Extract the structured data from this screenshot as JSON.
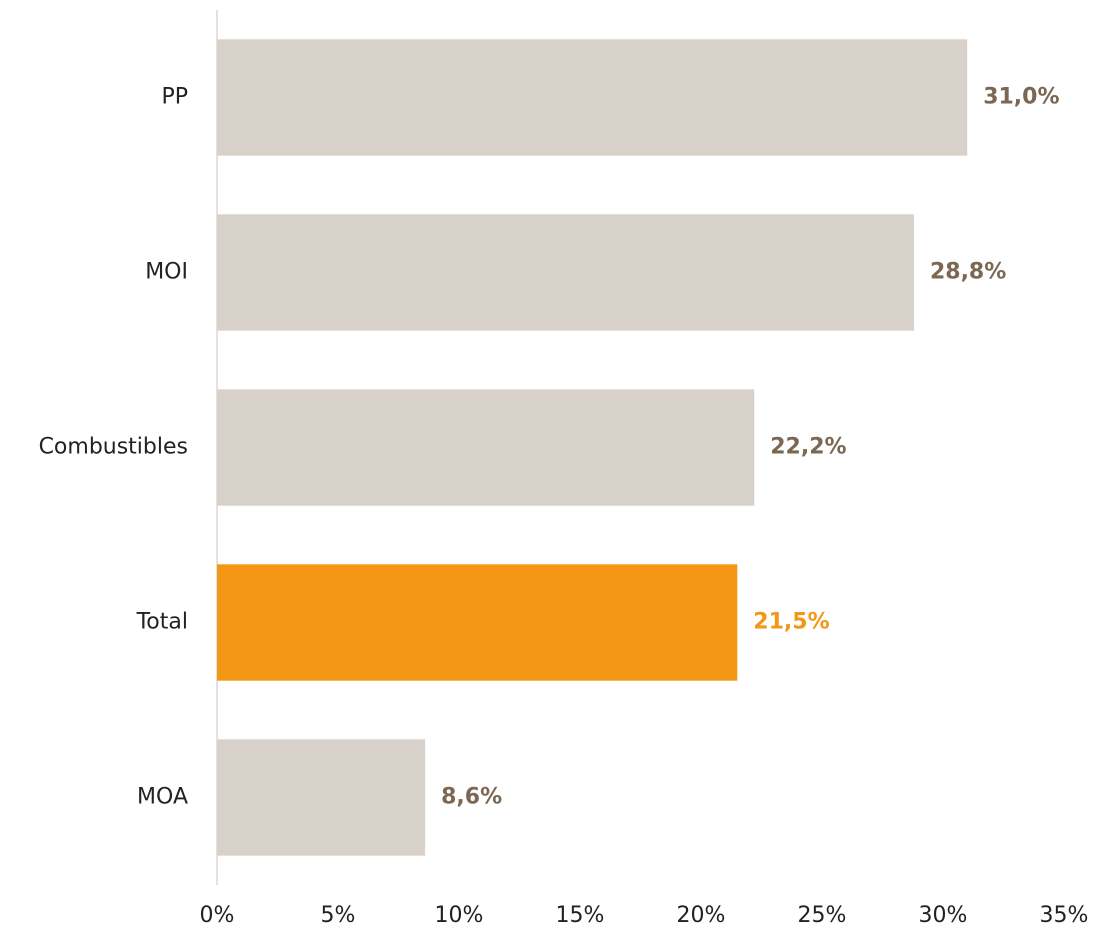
{
  "chart_data": {
    "type": "bar",
    "orientation": "horizontal",
    "categories": [
      "PP",
      "MOI",
      "Combustibles",
      "Total",
      "MOA"
    ],
    "values": [
      31.0,
      28.8,
      22.2,
      21.5,
      8.6
    ],
    "value_labels": [
      "31,0%",
      "28,8%",
      "22,2%",
      "21,5%",
      "8,6%"
    ],
    "colors": [
      "#d8d1ca",
      "#d8d1ca",
      "#d8d1ca",
      "#f49616",
      "#d8d1ca"
    ],
    "label_colors": [
      "#7b6753",
      "#7b6753",
      "#7b6753",
      "#f49616",
      "#7b6753"
    ],
    "xlim": [
      0,
      35
    ],
    "xticks": [
      {
        "value": 0,
        "label": "0%"
      },
      {
        "value": 5,
        "label": "5%"
      },
      {
        "value": 10,
        "label": "10%"
      },
      {
        "value": 15,
        "label": "15%"
      },
      {
        "value": 20,
        "label": "20%"
      },
      {
        "value": 25,
        "label": "25%"
      },
      {
        "value": 30,
        "label": "30%"
      },
      {
        "value": 35,
        "label": "35%"
      }
    ],
    "grid": false
  }
}
